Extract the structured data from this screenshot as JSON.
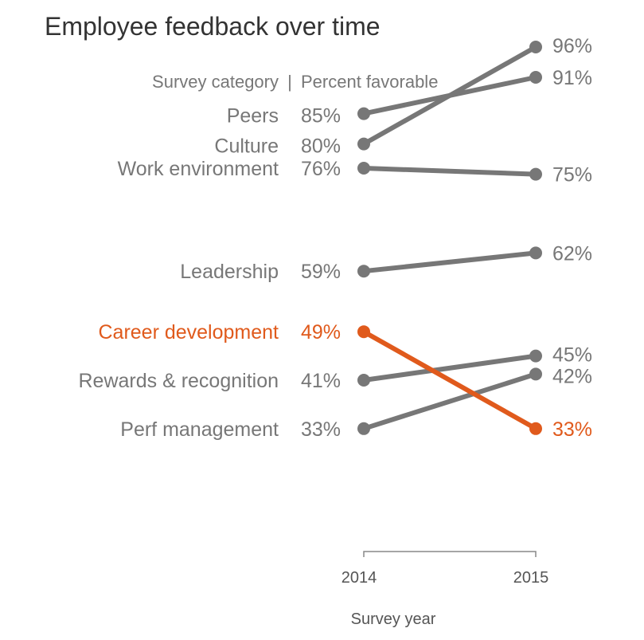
{
  "chart_data": {
    "type": "line",
    "title": "Employee feedback over time",
    "header_left": "Survey category",
    "header_separator": "|",
    "header_right": "Percent favorable",
    "xlabel": "Survey year",
    "x": [
      "2014",
      "2015"
    ],
    "ylim": [
      30,
      100
    ],
    "colors": {
      "default": "#777777",
      "highlight": "#e05a1c"
    },
    "series": [
      {
        "name": "Peers",
        "values": [
          85,
          91
        ],
        "labels": [
          "85%",
          "91%"
        ],
        "highlight": false
      },
      {
        "name": "Culture",
        "values": [
          80,
          96
        ],
        "labels": [
          "80%",
          "96%"
        ],
        "highlight": false
      },
      {
        "name": "Work environment",
        "values": [
          76,
          75
        ],
        "labels": [
          "76%",
          "75%"
        ],
        "highlight": false
      },
      {
        "name": "Leadership",
        "values": [
          59,
          62
        ],
        "labels": [
          "59%",
          "62%"
        ],
        "highlight": false
      },
      {
        "name": "Career development",
        "values": [
          49,
          33
        ],
        "labels": [
          "49%",
          "33%"
        ],
        "highlight": true
      },
      {
        "name": "Rewards & recognition",
        "values": [
          41,
          45
        ],
        "labels": [
          "41%",
          "45%"
        ],
        "highlight": false
      },
      {
        "name": "Perf management",
        "values": [
          33,
          42
        ],
        "labels": [
          "33%",
          "42%"
        ],
        "highlight": false
      }
    ]
  }
}
